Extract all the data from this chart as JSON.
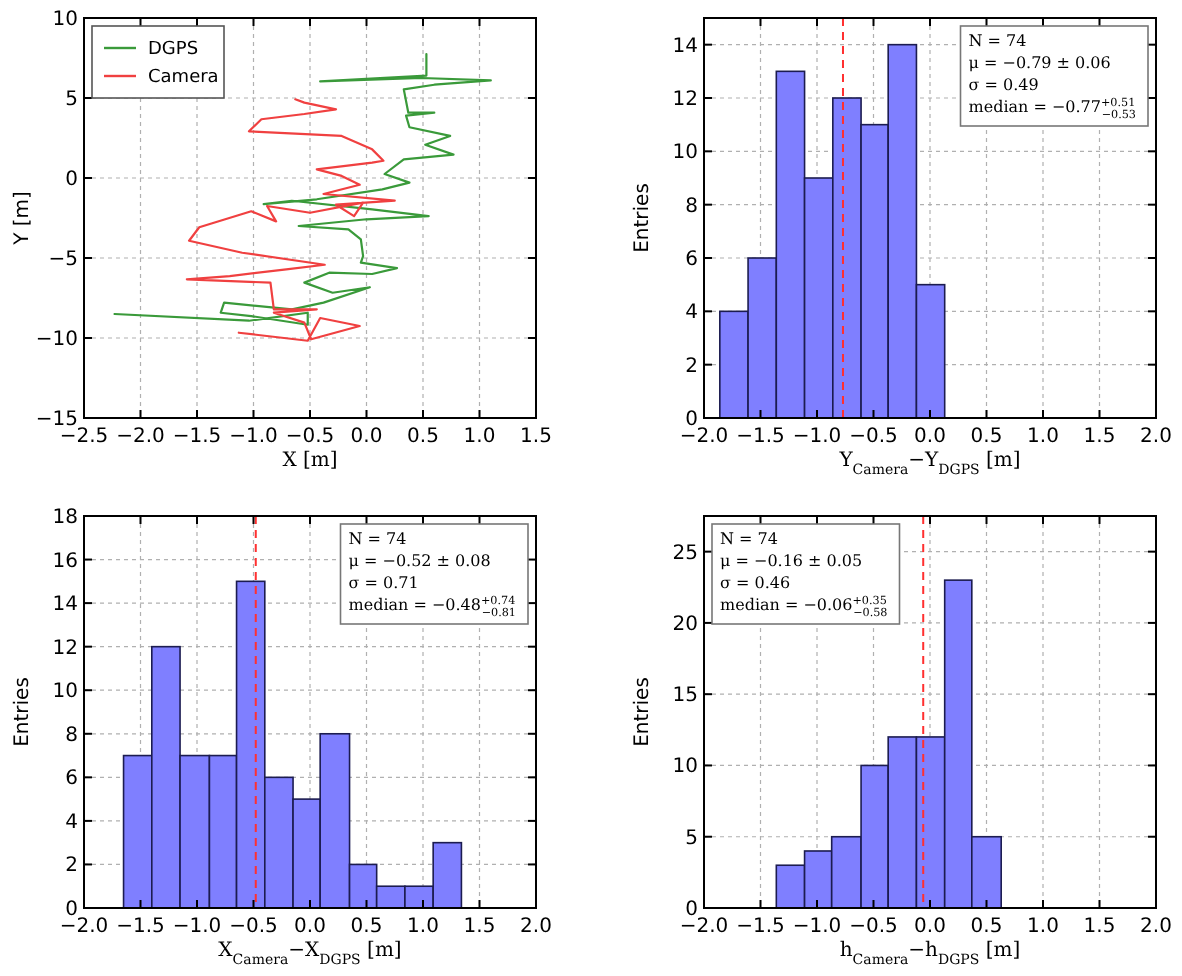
{
  "chart_data": [
    {
      "type": "line",
      "xlabel": "X [m]",
      "ylabel": "Y [m]",
      "xlim": [
        -2.5,
        1.5
      ],
      "ylim": [
        -15,
        10
      ],
      "xticks": [
        {
          "value": -2.5,
          "label": "−2.5"
        },
        {
          "value": -2,
          "label": "−2.0"
        },
        {
          "value": -1.5,
          "label": "−1.5"
        },
        {
          "value": -1,
          "label": "−1.0"
        },
        {
          "value": -0.5,
          "label": "−0.5"
        },
        {
          "value": 0,
          "label": "0.0"
        },
        {
          "value": 0.5,
          "label": "0.5"
        },
        {
          "value": 1,
          "label": "1.0"
        },
        {
          "value": 1.5,
          "label": "1.5"
        }
      ],
      "yticks": [
        -15,
        -10,
        -5,
        0,
        5,
        10
      ],
      "grid": true,
      "legend": "top left",
      "series": [
        {
          "name": "DGPS",
          "color": "#3a9a3a",
          "x": [
            0.53,
            0.53,
            -0.41,
            0.49,
            1.1,
            0.6,
            0.33,
            0.37,
            0.6,
            0.35,
            0.38,
            0.74,
            0.52,
            0.77,
            0.33,
            0.16,
            0.38,
            0.14,
            -0.44,
            -0.91,
            -0.66,
            0.05,
            0.55,
            0,
            -0.6,
            -0.16,
            -0.05,
            -0.03,
            -0.05,
            0.27,
            0.05,
            -0.33,
            -0.55,
            -0.3,
            0.03,
            -0.38,
            -0.66,
            -1.26,
            -1.29,
            -1.02,
            -0.52,
            -0.52,
            -1.04,
            -2.23
          ],
          "values": [
            7.75,
            6.4,
            6.04,
            6.25,
            6.1,
            5.83,
            5.54,
            4.08,
            4.08,
            3.9,
            3.17,
            2.63,
            2.08,
            1.46,
            1.17,
            0.25,
            -0.29,
            -0.71,
            -1.33,
            -1.63,
            -1.42,
            -1.96,
            -2.38,
            -2.58,
            -3,
            -3.21,
            -3.83,
            -4.88,
            -5.29,
            -5.63,
            -6,
            -5.92,
            -6.54,
            -7.17,
            -6.83,
            -7.79,
            -8.21,
            -7.79,
            -8.42,
            -8.63,
            -9.17,
            -8.42,
            -8.92,
            -8.5
          ]
        },
        {
          "name": "Camera",
          "color": "#f04040",
          "x": [
            -0.63,
            -0.55,
            -0.27,
            -0.55,
            -0.93,
            -1.04,
            -0.22,
            0.05,
            0.15,
            0.05,
            -0.44,
            -0.22,
            -0.06,
            -0.38,
            0.25,
            -0.27,
            -0.11,
            -0.03,
            -0.5,
            -0.88,
            -0.8,
            -1.02,
            -1.48,
            -1.57,
            -1.1,
            -0.37,
            -0.71,
            -1.21,
            -1.59,
            -0.85,
            -0.82,
            -0.44,
            -0.82,
            -0.55,
            -0.49,
            -0.06,
            -0.41,
            -0.52,
            -1.13
          ],
          "values": [
            4.92,
            4.71,
            4.29,
            4,
            3.67,
            2.92,
            2.63,
            1.79,
            1.08,
            0.96,
            0.54,
            0.13,
            -0.42,
            -1,
            -1.42,
            -1.67,
            -2.38,
            -1.54,
            -2.17,
            -1.75,
            -2.71,
            -2.08,
            -3.08,
            -3.92,
            -4.67,
            -5.42,
            -5.71,
            -6.13,
            -6.33,
            -6.54,
            -8.21,
            -8.21,
            -8.42,
            -9.04,
            -10.08,
            -9.25,
            -8.75,
            -10.17,
            -9.67
          ]
        }
      ]
    },
    {
      "type": "histogram",
      "xlabel": "Y$_{Camera}$−Y$_{DGPS}$ [m]",
      "ylabel": "Entries",
      "xlim": [
        -2,
        2
      ],
      "ylim": [
        0,
        15
      ],
      "xticks": [
        {
          "value": -2,
          "label": "−2.0"
        },
        {
          "value": -1.5,
          "label": "−1.5"
        },
        {
          "value": -1,
          "label": "−1.0"
        },
        {
          "value": -0.5,
          "label": "−0.5"
        },
        {
          "value": 0,
          "label": "0.0"
        },
        {
          "value": 0.5,
          "label": "0.5"
        },
        {
          "value": 1,
          "label": "1.0"
        },
        {
          "value": 1.5,
          "label": "1.5"
        },
        {
          "value": 2,
          "label": "2.0"
        }
      ],
      "yticks": [
        0,
        2,
        4,
        6,
        8,
        10,
        12,
        14
      ],
      "grid": true,
      "color": "#7f7fff",
      "bins": [
        -1.86,
        -1.61,
        -1.36,
        -1.11,
        -0.86,
        -0.61,
        -0.37,
        -0.12,
        0.13
      ],
      "values": [
        4,
        6,
        13,
        9,
        12,
        11,
        14,
        5
      ],
      "ref_lines": [
        {
          "axis": "x",
          "value": -0.77,
          "color": "#ff3030",
          "line_style": "dashed"
        }
      ],
      "annotations": [
        "N = 74",
        "μ = −0.79 ± 0.06",
        "σ = 0.49",
        "median = −0.77$^{+0.51}$$_{−0.53}$"
      ]
    },
    {
      "type": "histogram",
      "xlabel": "X$_{Camera}$−X$_{DGPS}$ [m]",
      "ylabel": "Entries",
      "xlim": [
        -2,
        2
      ],
      "ylim": [
        0,
        18
      ],
      "xticks": [
        {
          "value": -2,
          "label": "−2.0"
        },
        {
          "value": -1.5,
          "label": "−1.5"
        },
        {
          "value": -1,
          "label": "−1.0"
        },
        {
          "value": -0.5,
          "label": "−0.5"
        },
        {
          "value": 0,
          "label": "0.0"
        },
        {
          "value": 0.5,
          "label": "0.5"
        },
        {
          "value": 1,
          "label": "1.0"
        },
        {
          "value": 1.5,
          "label": "1.5"
        },
        {
          "value": 2,
          "label": "2.0"
        }
      ],
      "yticks": [
        0,
        2,
        4,
        6,
        8,
        10,
        12,
        14,
        16,
        18
      ],
      "grid": true,
      "color": "#7f7fff",
      "bins": [
        -1.65,
        -1.4,
        -1.15,
        -0.89,
        -0.65,
        -0.4,
        -0.15,
        0.09,
        0.35,
        0.59,
        0.84,
        1.09,
        1.34
      ],
      "values": [
        7,
        12,
        7,
        7,
        15,
        6,
        5,
        8,
        2,
        1,
        1,
        3
      ],
      "ref_lines": [
        {
          "axis": "x",
          "value": -0.48,
          "color": "#ff3030",
          "line_style": "dashed"
        }
      ],
      "annotations": [
        "N = 74",
        "μ = −0.52 ± 0.08",
        "σ = 0.71",
        "median = −0.48$^{+0.74}$$_{−0.81}$"
      ]
    },
    {
      "type": "histogram",
      "xlabel": "h$_{Camera}$−h$_{DGPS}$ [m]",
      "ylabel": "Entries",
      "xlim": [
        -2,
        2
      ],
      "ylim": [
        0,
        27.5
      ],
      "xticks": [
        {
          "value": -2,
          "label": "−2.0"
        },
        {
          "value": -1.5,
          "label": "−1.5"
        },
        {
          "value": -1,
          "label": "−1.0"
        },
        {
          "value": -0.5,
          "label": "−0.5"
        },
        {
          "value": 0,
          "label": "0.0"
        },
        {
          "value": 0.5,
          "label": "0.5"
        },
        {
          "value": 1,
          "label": "1.0"
        },
        {
          "value": 1.5,
          "label": "1.5"
        },
        {
          "value": 2,
          "label": "2.0"
        }
      ],
      "yticks": [
        0,
        5,
        10,
        15,
        20,
        25
      ],
      "grid": true,
      "color": "#7f7fff",
      "bins": [
        -1.36,
        -1.11,
        -0.87,
        -0.61,
        -0.37,
        -0.12,
        0.13,
        0.37,
        0.63
      ],
      "values": [
        3,
        4,
        5,
        10,
        12,
        12,
        23,
        5
      ],
      "ref_lines": [
        {
          "axis": "x",
          "value": -0.06,
          "color": "#ff3030",
          "line_style": "dashed"
        }
      ],
      "annotations": [
        "N = 74",
        "μ = −0.16 ± 0.05",
        "σ = 0.46",
        "median = −0.06$^{+0.35}$$_{−0.58}$"
      ]
    }
  ]
}
